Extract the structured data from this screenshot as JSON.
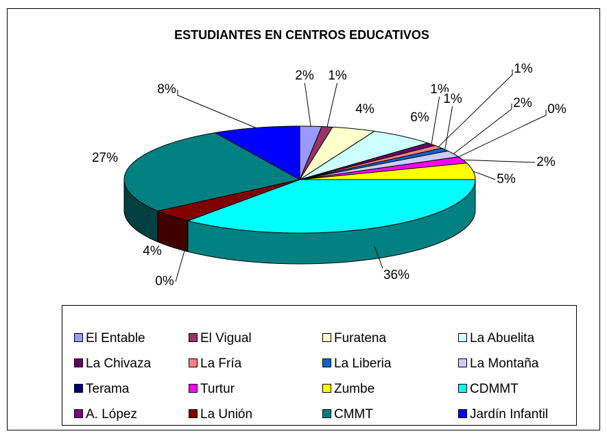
{
  "chart_data": {
    "type": "pie3d",
    "title": "ESTUDIANTES EN CENTROS EDUCATIVOS",
    "categories": [
      "El Entable",
      "El Vigual",
      "Furatena",
      "La Abuelita",
      "La Chivaza",
      "La Fría",
      "La Liberia",
      "La Montaña",
      "Terama",
      "Turtur",
      "Zumbe",
      "CDMMT",
      "A. López",
      "La Unión",
      "CMMT",
      "Jardín Infantil"
    ],
    "values": [
      2,
      1,
      4,
      6,
      1,
      1,
      1,
      2,
      0,
      2,
      5,
      36,
      0,
      4,
      27,
      8
    ],
    "value_labels": [
      "2%",
      "1%",
      "4%",
      "6%",
      "1%",
      "1%",
      "1%",
      "2%",
      "0%",
      "2%",
      "5%",
      "36%",
      "0%",
      "4%",
      "27%",
      "8%"
    ],
    "colors": [
      "#9999ff",
      "#993366",
      "#ffffcc",
      "#ccffff",
      "#660066",
      "#ff8080",
      "#0066cc",
      "#ccccff",
      "#000080",
      "#ff00ff",
      "#ffff00",
      "#00ffff",
      "#800080",
      "#800000",
      "#008080",
      "#0000ff"
    ],
    "legend": "bottom"
  }
}
